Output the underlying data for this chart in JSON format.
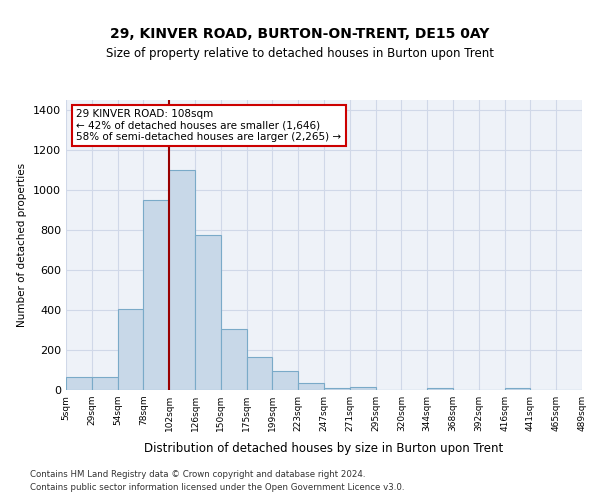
{
  "title": "29, KINVER ROAD, BURTON-ON-TRENT, DE15 0AY",
  "subtitle": "Size of property relative to detached houses in Burton upon Trent",
  "xlabel": "Distribution of detached houses by size in Burton upon Trent",
  "ylabel": "Number of detached properties",
  "bin_labels": [
    "5sqm",
    "29sqm",
    "54sqm",
    "78sqm",
    "102sqm",
    "126sqm",
    "150sqm",
    "175sqm",
    "199sqm",
    "223sqm",
    "247sqm",
    "271sqm",
    "295sqm",
    "320sqm",
    "344sqm",
    "368sqm",
    "392sqm",
    "416sqm",
    "441sqm",
    "465sqm",
    "489sqm"
  ],
  "bar_heights": [
    65,
    65,
    405,
    950,
    1100,
    775,
    305,
    165,
    95,
    35,
    10,
    15,
    0,
    0,
    12,
    0,
    0,
    10,
    0,
    0
  ],
  "bar_color": "#c8d8e8",
  "bar_edge_color": "#7aaac8",
  "grid_color": "#d0d8e8",
  "bg_color": "#eef2f8",
  "property_line_color": "#990000",
  "annotation_text": "29 KINVER ROAD: 108sqm\n← 42% of detached houses are smaller (1,646)\n58% of semi-detached houses are larger (2,265) →",
  "annotation_box_color": "#ffffff",
  "annotation_border_color": "#cc0000",
  "ylim": [
    0,
    1450
  ],
  "yticks": [
    0,
    200,
    400,
    600,
    800,
    1000,
    1200,
    1400
  ],
  "footer_line1": "Contains HM Land Registry data © Crown copyright and database right 2024.",
  "footer_line2": "Contains public sector information licensed under the Open Government Licence v3.0."
}
